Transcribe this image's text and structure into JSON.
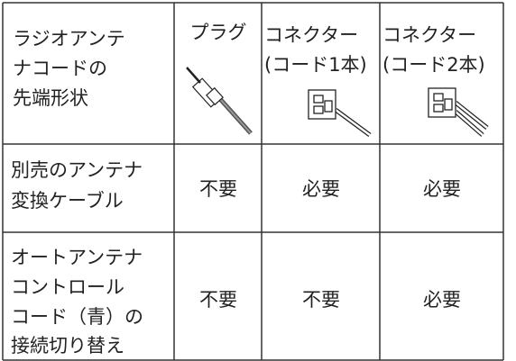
{
  "table": {
    "header": {
      "first": [
        "ラジオアンテ",
        "ナコードの",
        "先端形状"
      ],
      "columns": [
        [
          "プラグ"
        ],
        [
          "コネクター",
          "(コード1本)"
        ],
        [
          "コネクター",
          "(コード2本)"
        ]
      ]
    },
    "rows": [
      {
        "label": [
          "別売のアンテナ",
          "変換ケーブル"
        ],
        "cells": [
          "不要",
          "必要",
          "必要"
        ]
      },
      {
        "label": [
          "オートアンテナ",
          "コントロール",
          "コード（青）の",
          "接続切り替え"
        ],
        "cells": [
          "不要",
          "不要",
          "必要"
        ]
      }
    ]
  }
}
